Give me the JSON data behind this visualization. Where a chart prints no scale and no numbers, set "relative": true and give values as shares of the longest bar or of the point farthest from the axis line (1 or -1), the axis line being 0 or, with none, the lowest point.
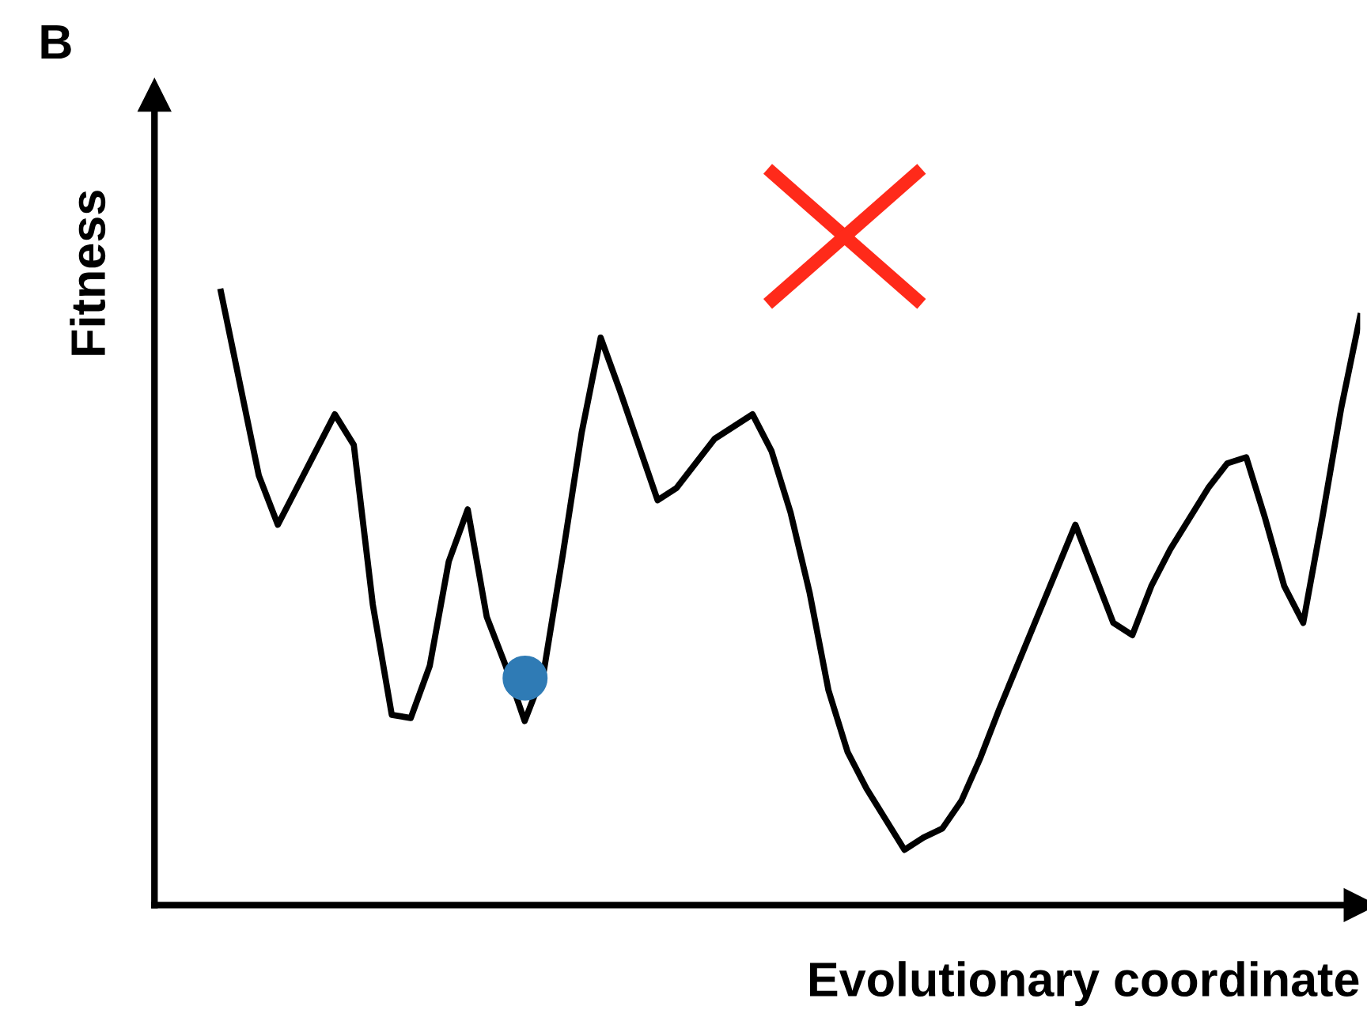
{
  "chart_data": {
    "type": "line",
    "relative": true,
    "xlabel": "Evolutionary coordinate",
    "ylabel": "Fitness",
    "annotations": [
      "B"
    ],
    "marker": "none",
    "line_style": "solid",
    "categories": [
      null,
      null,
      null,
      null,
      null,
      null,
      null,
      null,
      null,
      null,
      null,
      null,
      null,
      null,
      null,
      null,
      null,
      null,
      null,
      null,
      null,
      null,
      null,
      null,
      null,
      null,
      null,
      null,
      null,
      null,
      null,
      null,
      null,
      null,
      null,
      null,
      null,
      null,
      null,
      null,
      null,
      null,
      null,
      null,
      null,
      null,
      null,
      null,
      null,
      null,
      null,
      null,
      null,
      null,
      null,
      null,
      null,
      null,
      null,
      null,
      null
    ],
    "series": [
      {
        "color": "#000000",
        "values": [
          1.0,
          0.85,
          0.7,
          0.62,
          0.68,
          0.74,
          0.8,
          0.75,
          0.49,
          0.31,
          0.305,
          0.39,
          0.56,
          0.645,
          0.47,
          0.39,
          0.3,
          0.38,
          0.57,
          0.77,
          0.925,
          0.84,
          0.75,
          0.66,
          0.68,
          0.72,
          0.76,
          0.78,
          0.8,
          0.74,
          0.64,
          0.51,
          0.35,
          0.25,
          0.19,
          0.14,
          0.09,
          0.11,
          0.125,
          0.17,
          0.24,
          0.32,
          0.395,
          0.47,
          0.545,
          0.62,
          0.54,
          0.46,
          0.44,
          0.52,
          0.58,
          0.63,
          0.68,
          0.72,
          0.73,
          0.63,
          0.52,
          0.46,
          0.63,
          0.81,
          0.96
        ]
      }
    ]
  }
}
